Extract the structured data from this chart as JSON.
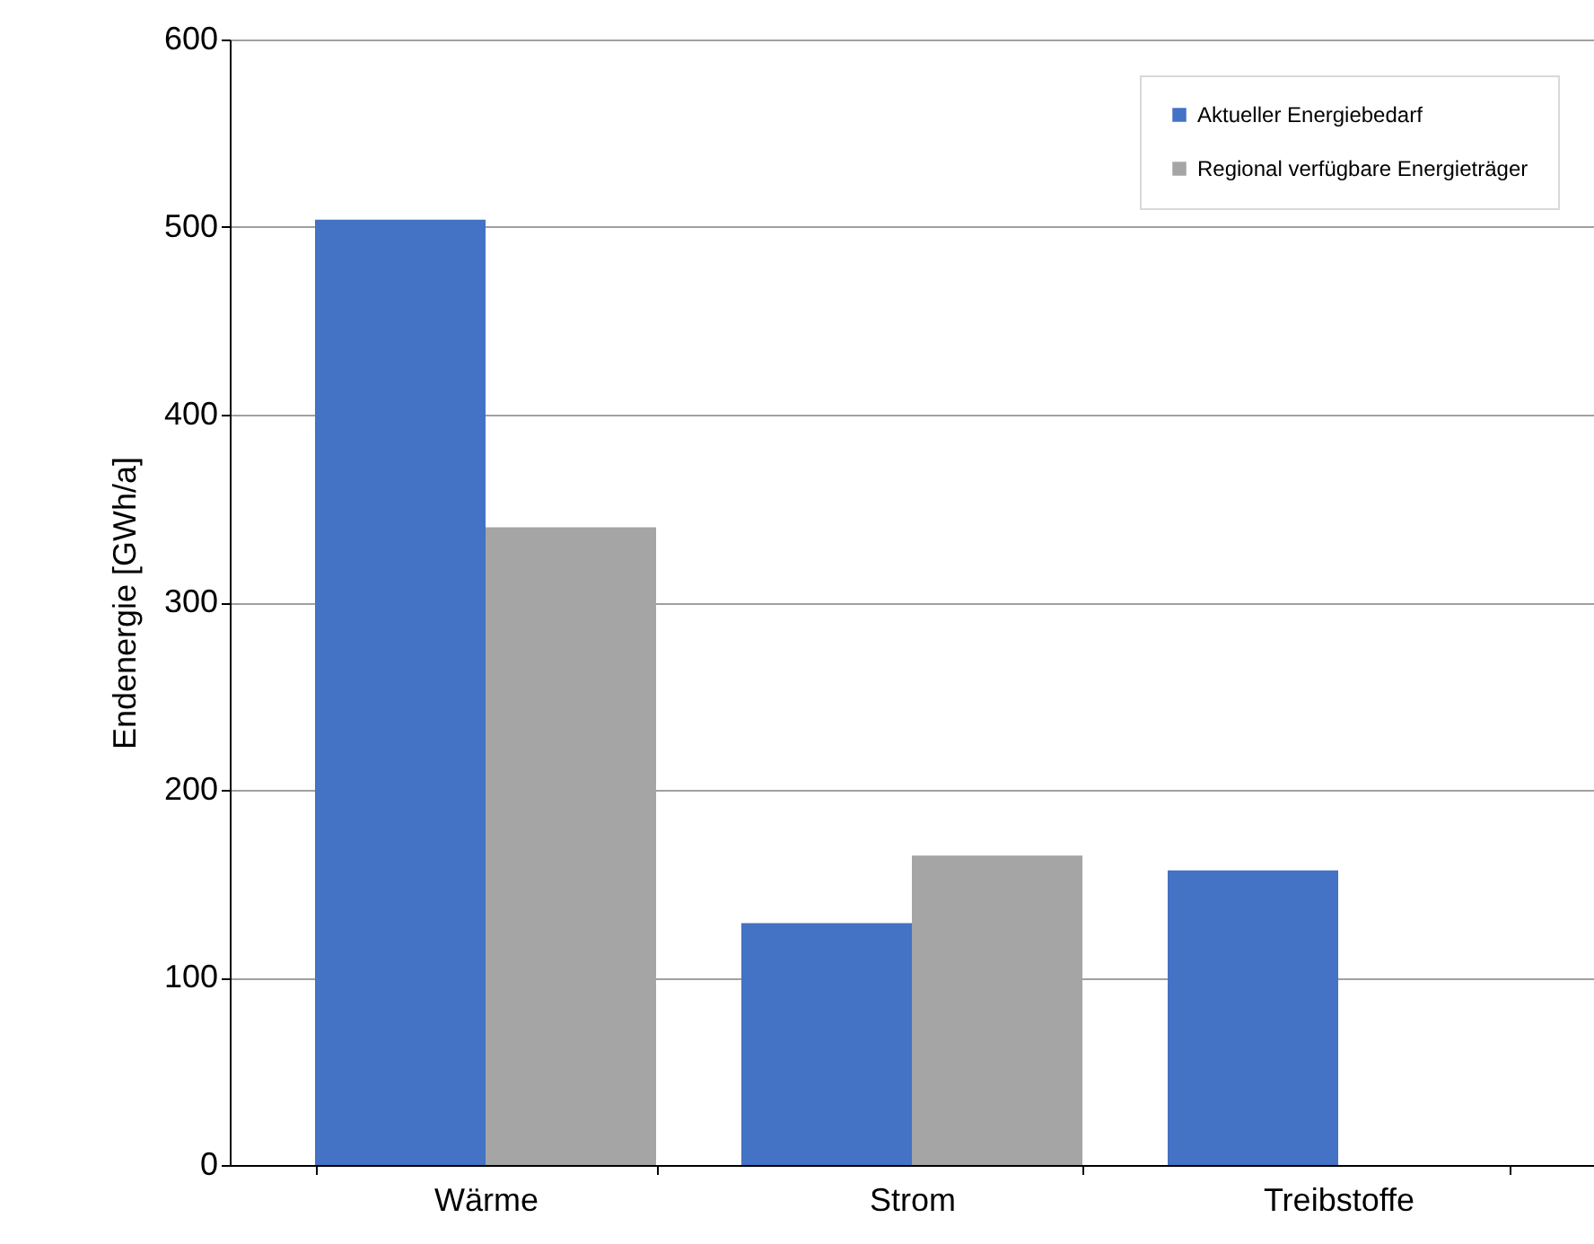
{
  "chart_data": {
    "type": "bar",
    "ylabel": "Endenergie [GWh/a]",
    "categories": [
      "Wärme",
      "Strom",
      "Treibstoffe"
    ],
    "series": [
      {
        "name": "Aktueller Energiebedarf",
        "color": "#4472c4",
        "values": [
          504,
          129,
          157
        ]
      },
      {
        "name": "Regional verfügbare Energieträger",
        "color": "#a5a5a5",
        "values": [
          340,
          165,
          null
        ]
      }
    ],
    "ylim": [
      0,
      600
    ],
    "yticks": [
      0,
      100,
      200,
      300,
      400,
      500,
      600
    ],
    "grid": "y",
    "legend": "top right"
  }
}
